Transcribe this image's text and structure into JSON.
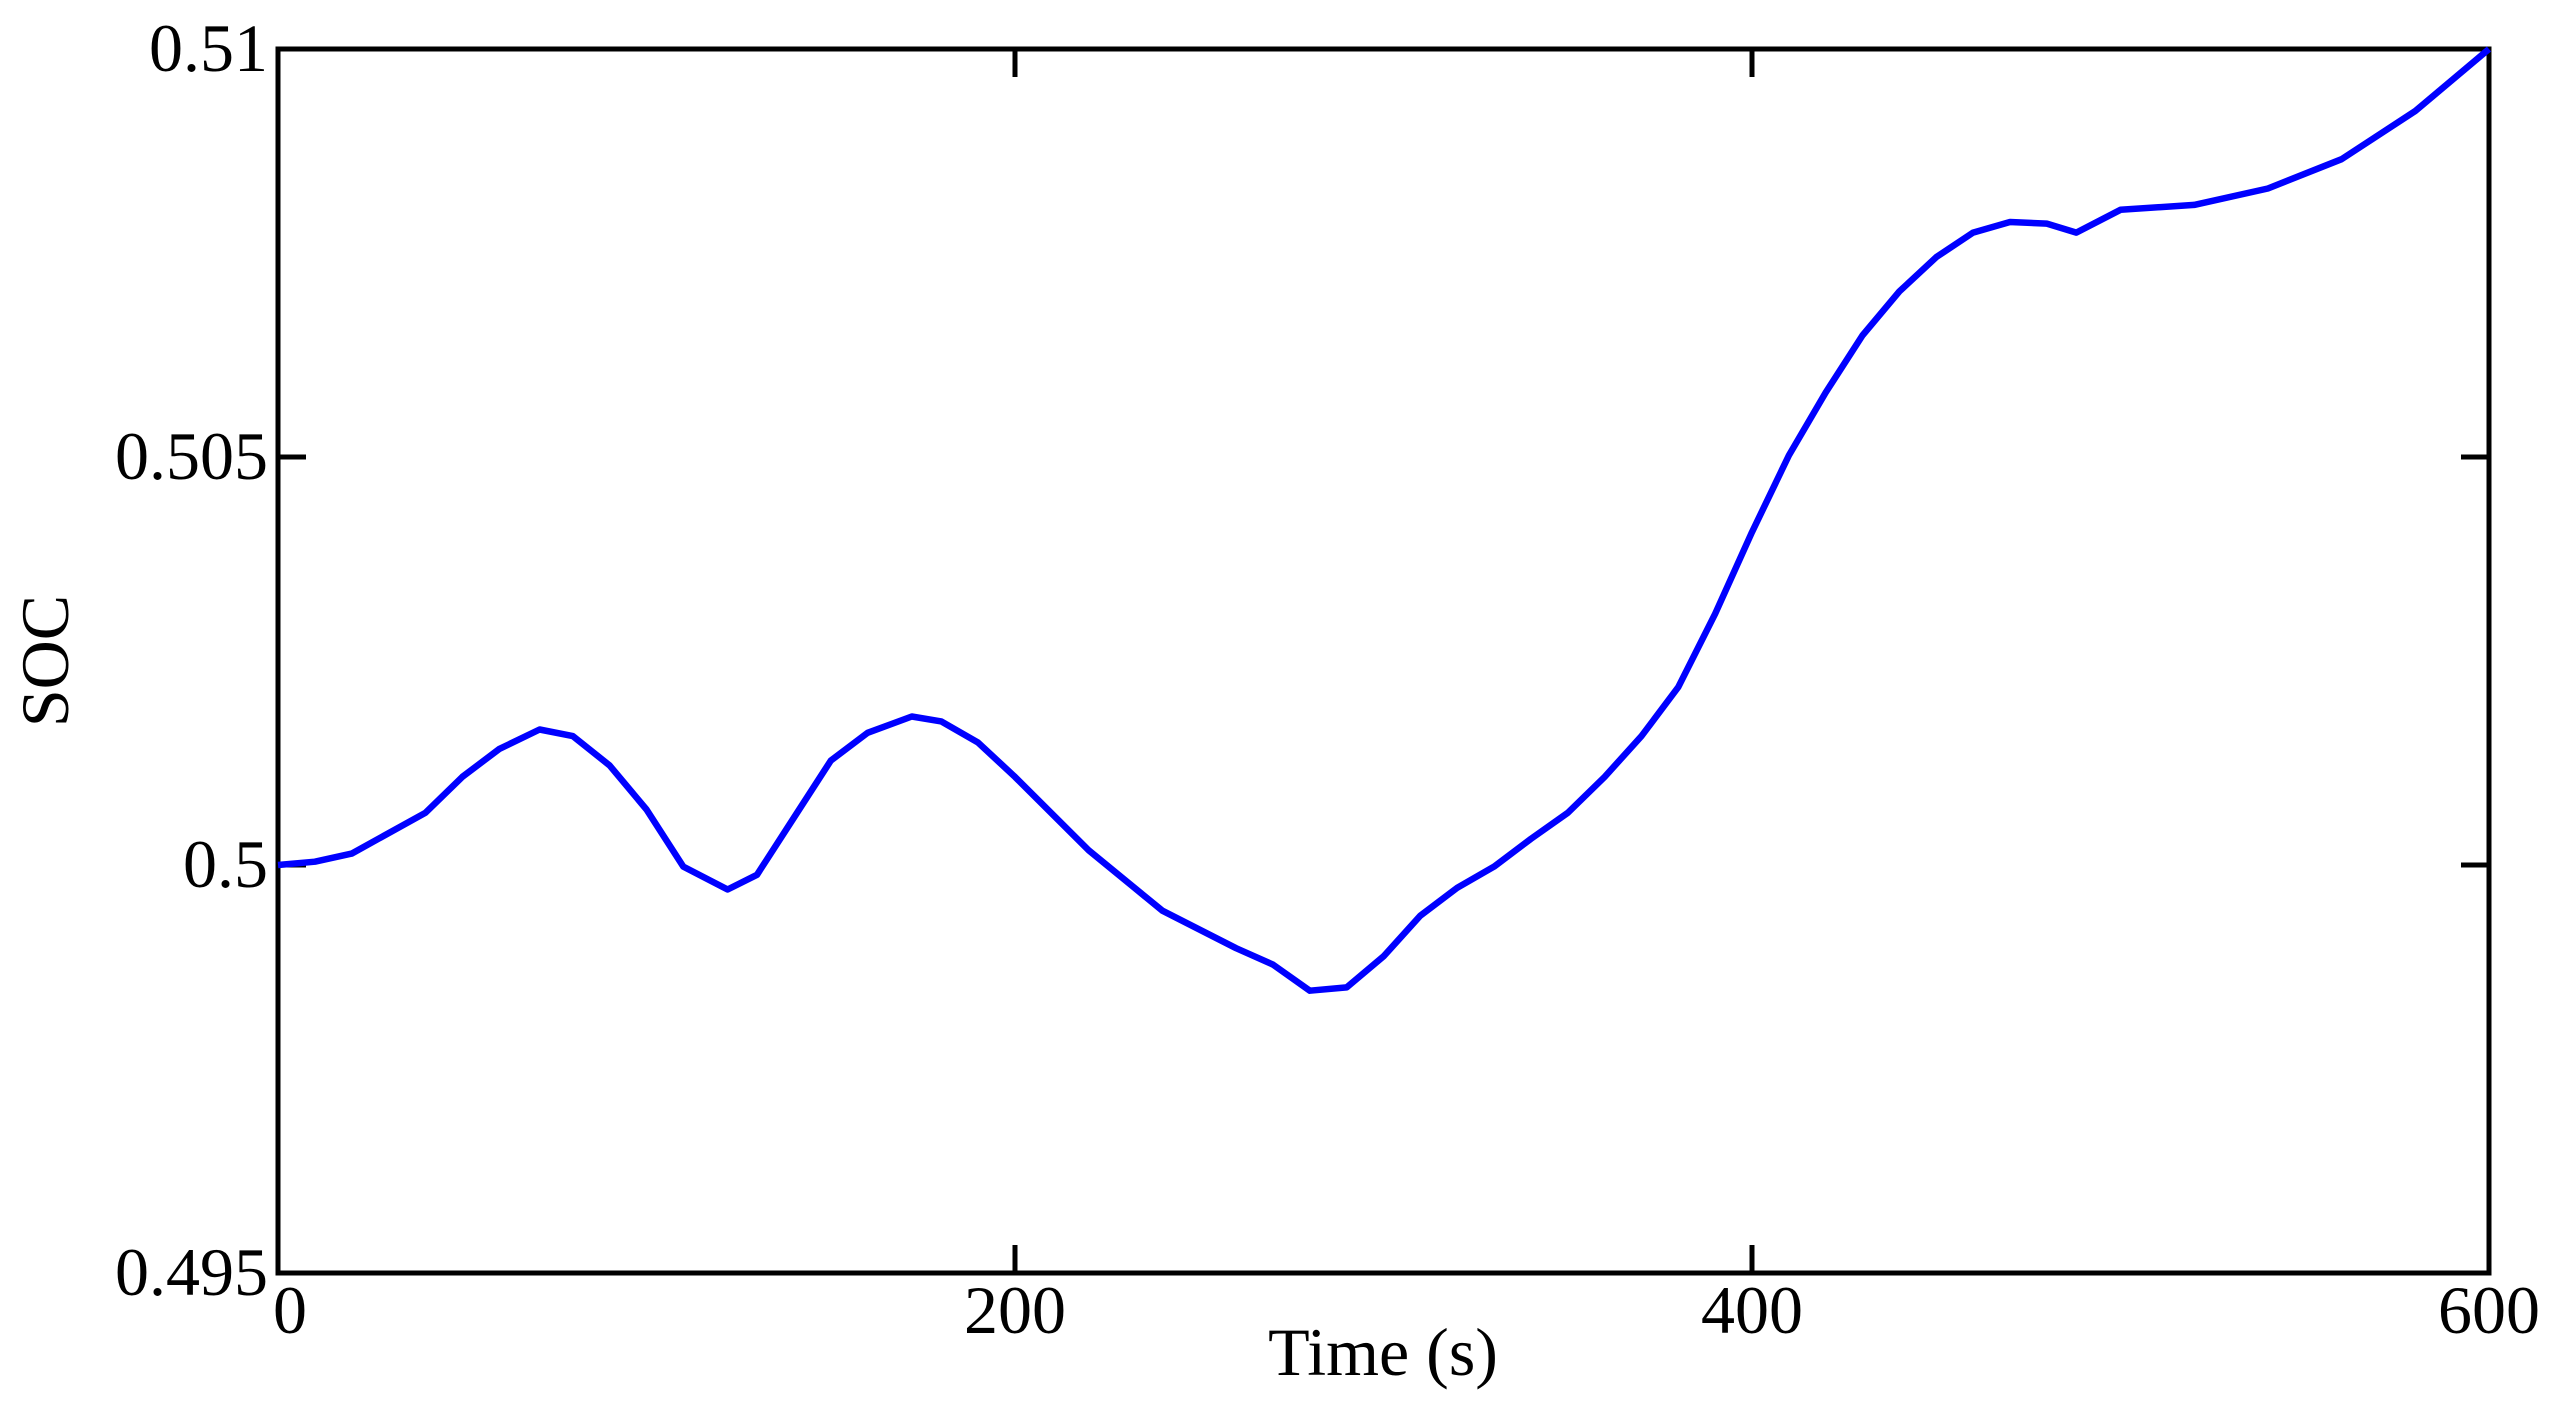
{
  "chart_data": {
    "type": "line",
    "x_label": "Time (s)",
    "y_label": "SOC",
    "x": [
      0,
      10,
      20,
      40,
      50,
      60,
      71,
      80,
      90,
      100,
      110,
      122,
      130,
      140,
      150,
      160,
      172,
      180,
      190,
      200,
      220,
      240,
      260,
      270,
      280,
      290,
      300,
      310,
      320,
      330,
      340,
      350,
      360,
      370,
      380,
      390,
      400,
      410,
      420,
      430,
      440,
      450,
      460,
      470,
      480,
      488,
      500,
      520,
      540,
      560,
      580,
      600
    ],
    "values": [
      0.5,
      0.50004,
      0.50014,
      0.50064,
      0.50108,
      0.50142,
      0.50166,
      0.50158,
      0.50122,
      0.50068,
      0.49998,
      0.4997,
      0.49988,
      0.50058,
      0.50128,
      0.50162,
      0.50182,
      0.50176,
      0.5015,
      0.50108,
      0.50018,
      0.49944,
      0.49898,
      0.49878,
      0.49846,
      0.4985,
      0.49888,
      0.49938,
      0.49972,
      0.49998,
      0.50032,
      0.50064,
      0.50108,
      0.50158,
      0.50218,
      0.50308,
      0.50408,
      0.50502,
      0.50579,
      0.50649,
      0.50703,
      0.50745,
      0.50775,
      0.50788,
      0.50786,
      0.50775,
      0.50803,
      0.50809,
      0.50829,
      0.50865,
      0.50924,
      0.51
    ],
    "color": "#0000ff",
    "xlim": [
      0,
      600
    ],
    "xticks": [
      0,
      200,
      400,
      600
    ],
    "ylim": [
      0.495,
      0.51
    ],
    "yticks": [
      0.495,
      0.5,
      0.505,
      0.51
    ],
    "grid": false
  }
}
